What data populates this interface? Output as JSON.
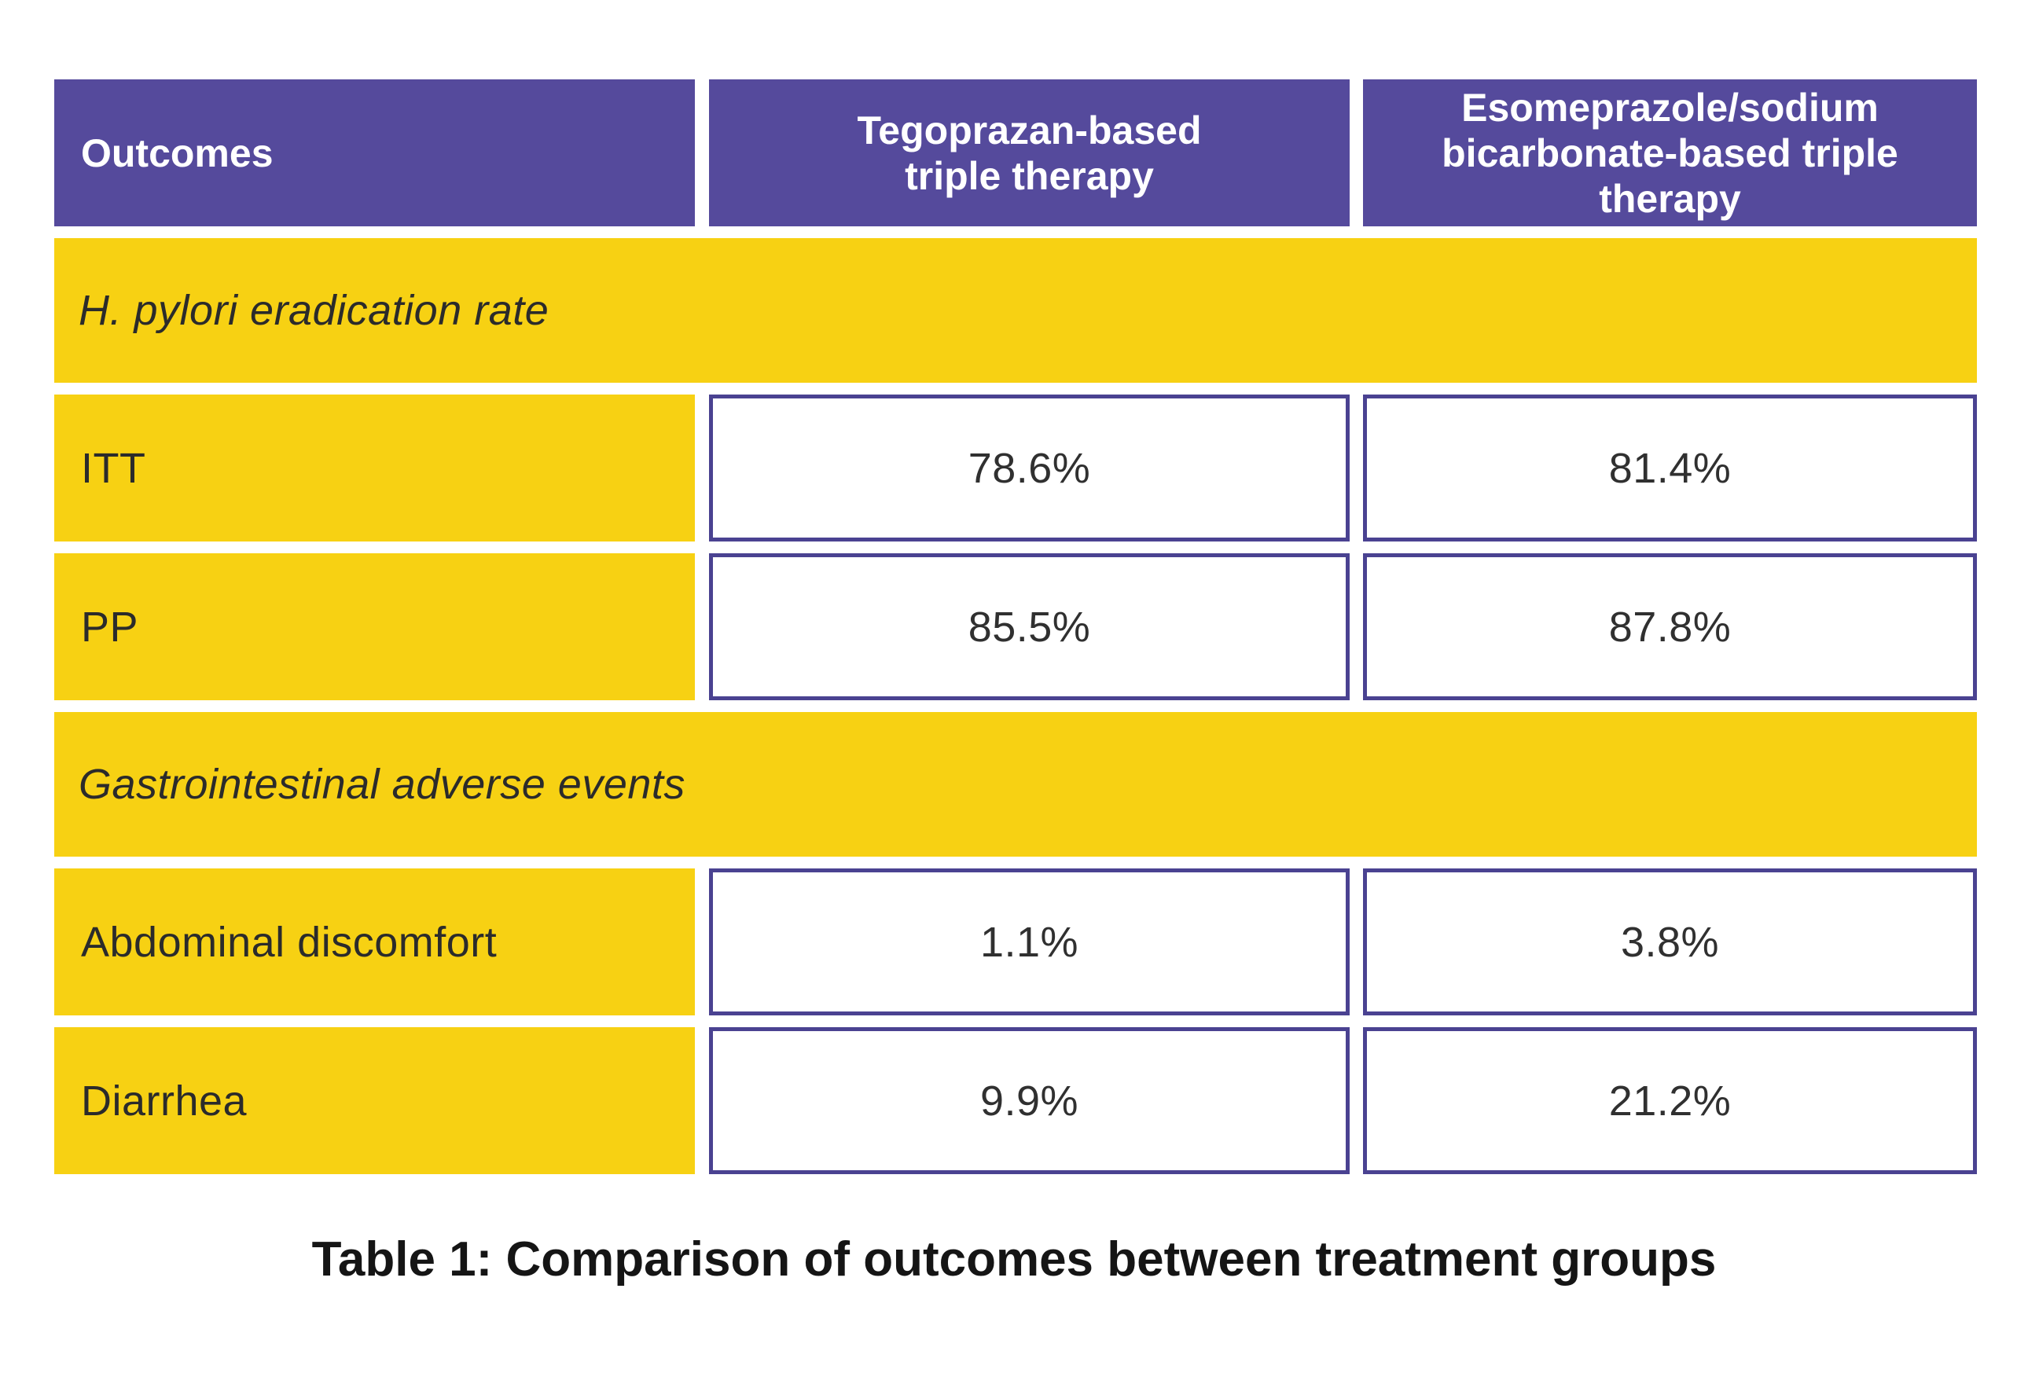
{
  "table": {
    "header": {
      "outcomes": "Outcomes",
      "tegoprazan": "Tegoprazan-based triple therapy",
      "esomeprazole": "Esomeprazole/sodium bicarbonate-based triple therapy"
    },
    "sections": [
      {
        "title": "H. pylori eradication rate",
        "rows": [
          {
            "label": "ITT",
            "tegoprazan": "78.6%",
            "esomeprazole": "81.4%"
          },
          {
            "label": "PP",
            "tegoprazan": "85.5%",
            "esomeprazole": "87.8%"
          }
        ]
      },
      {
        "title": "Gastrointestinal adverse events",
        "rows": [
          {
            "label": "Abdominal discomfort",
            "tegoprazan": "1.1%",
            "esomeprazole": "3.8%"
          },
          {
            "label": "Diarrhea",
            "tegoprazan": "9.9%",
            "esomeprazole": "21.2%"
          }
        ]
      }
    ],
    "caption": "Table 1: Comparison of outcomes between treatment groups"
  },
  "colors": {
    "header_purple": "#554A9C",
    "accent_yellow": "#F7D113",
    "cell_border_indigo": "#4A4291",
    "header_text": "#FFFFFF",
    "body_text": "#2B2B2B",
    "caption_text": "#151515",
    "page_background": "#FFFFFF"
  },
  "chart_data": {
    "type": "table",
    "title": "Table 1: Comparison of outcomes between treatment groups",
    "columns": [
      "Outcomes",
      "Tegoprazan-based triple therapy",
      "Esomeprazole/sodium bicarbonate-based triple therapy"
    ],
    "sections": [
      {
        "section": "H. pylori eradication rate",
        "rows": [
          {
            "outcome": "ITT",
            "tegoprazan_based_triple_therapy_pct": 78.6,
            "esomeprazole_sodium_bicarbonate_based_triple_therapy_pct": 81.4
          },
          {
            "outcome": "PP",
            "tegoprazan_based_triple_therapy_pct": 85.5,
            "esomeprazole_sodium_bicarbonate_based_triple_therapy_pct": 87.8
          }
        ]
      },
      {
        "section": "Gastrointestinal adverse events",
        "rows": [
          {
            "outcome": "Abdominal discomfort",
            "tegoprazan_based_triple_therapy_pct": 1.1,
            "esomeprazole_sodium_bicarbonate_based_triple_therapy_pct": 3.8
          },
          {
            "outcome": "Diarrhea",
            "tegoprazan_based_triple_therapy_pct": 9.9,
            "esomeprazole_sodium_bicarbonate_based_triple_therapy_pct": 21.2
          }
        ]
      }
    ]
  }
}
